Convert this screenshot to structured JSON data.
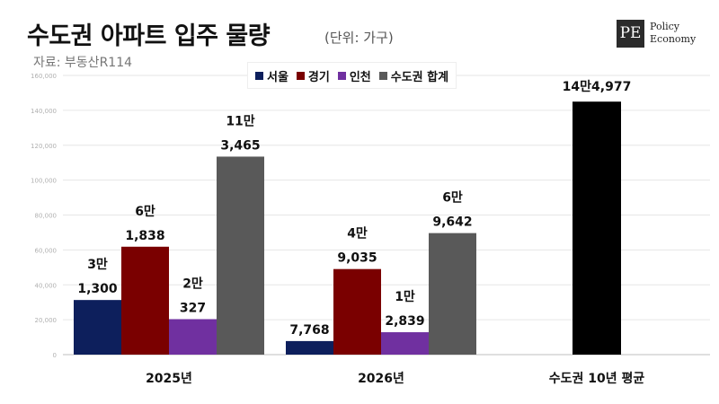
{
  "header": {
    "title": "수도권 아파트 입주 물량",
    "unit": "(단위: 가구)",
    "source": "자료: 부동산R114"
  },
  "logo": {
    "mark": "PE",
    "line1": "Policy",
    "line2": "Economy"
  },
  "legend": [
    {
      "label": "서울",
      "color": "#0d1f5c"
    },
    {
      "label": "경기",
      "color": "#7a0000"
    },
    {
      "label": "인천",
      "color": "#7030a0"
    },
    {
      "label": "수도권 합계",
      "color": "#595959"
    }
  ],
  "chart_data": {
    "type": "bar",
    "categories": [
      "2025년",
      "2026년",
      "수도권 10년 평균"
    ],
    "series": [
      {
        "name": "서울",
        "color": "#0d1f5c",
        "values": [
          31300,
          7768,
          null
        ],
        "labels": [
          [
            "3만",
            "1,300"
          ],
          [
            "7,768"
          ],
          []
        ]
      },
      {
        "name": "경기",
        "color": "#7a0000",
        "values": [
          61838,
          49035,
          null
        ],
        "labels": [
          [
            "6만",
            "1,838"
          ],
          [
            "4만",
            "9,035"
          ],
          []
        ]
      },
      {
        "name": "인천",
        "color": "#7030a0",
        "values": [
          20327,
          12839,
          null
        ],
        "labels": [
          [
            "2만",
            "327"
          ],
          [
            "1만",
            "2,839"
          ],
          []
        ]
      },
      {
        "name": "수도권 합계",
        "color": "#595959",
        "values": [
          113465,
          69642,
          null
        ],
        "labels": [
          [
            "11만",
            "3,465"
          ],
          [
            "6만",
            "9,642"
          ],
          []
        ]
      },
      {
        "name": "",
        "color": "#000000",
        "values": [
          null,
          null,
          144977
        ],
        "labels": [
          [],
          [],
          [
            "14만4,977"
          ]
        ]
      }
    ],
    "yticks": [
      "0",
      "20,000",
      "40,000",
      "60,000",
      "80,000",
      "100,000",
      "120,000",
      "140,000",
      "160,000"
    ],
    "ylim": [
      0,
      160000
    ],
    "grid": true,
    "legend_position": "top-center"
  }
}
